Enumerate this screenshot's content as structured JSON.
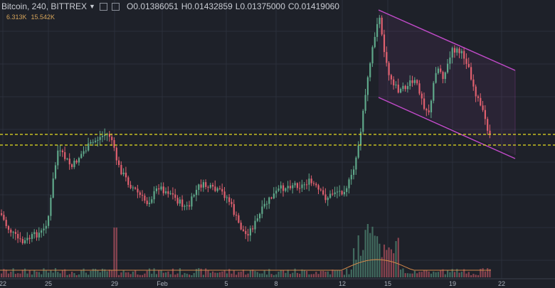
{
  "header": {
    "symbol": "Bitcoin, 240, BITTREX",
    "open_label": "O",
    "open": "0.01386051",
    "high_label": "H",
    "high": "0.01432859",
    "low_label": "L",
    "low": "0.01375000",
    "close_label": "C",
    "close": "0.01419060"
  },
  "volume_readout": {
    "vol_ma": "6.313K",
    "vol": "15.542K"
  },
  "colors": {
    "background": "#1e2129",
    "up": "#5fa88a",
    "down": "#e0606f",
    "channel": "#c04ac8",
    "support": "#e8e020",
    "volume_ma": "#d0884a"
  },
  "chart_data": {
    "type": "candlestick",
    "interval": "240",
    "x_tick_labels": [
      "22",
      "25",
      "29",
      "Feb",
      "5",
      "8",
      "12",
      "15",
      "19",
      "22"
    ],
    "ohlc_window": {
      "open": 0.01386051,
      "high": 0.01432859,
      "low": 0.01375,
      "close": 0.0141906
    },
    "annotations": [
      {
        "type": "horizontal_line",
        "style": "dashed",
        "color": "#e8e020",
        "label": "support level upper"
      },
      {
        "type": "horizontal_line",
        "style": "dashed",
        "color": "#e8e020",
        "label": "support level lower"
      },
      {
        "type": "descending_channel",
        "color": "#c04ac8"
      }
    ],
    "volume": {
      "ma_value": "6.313K",
      "last_value": "15.542K"
    },
    "grid": true
  }
}
